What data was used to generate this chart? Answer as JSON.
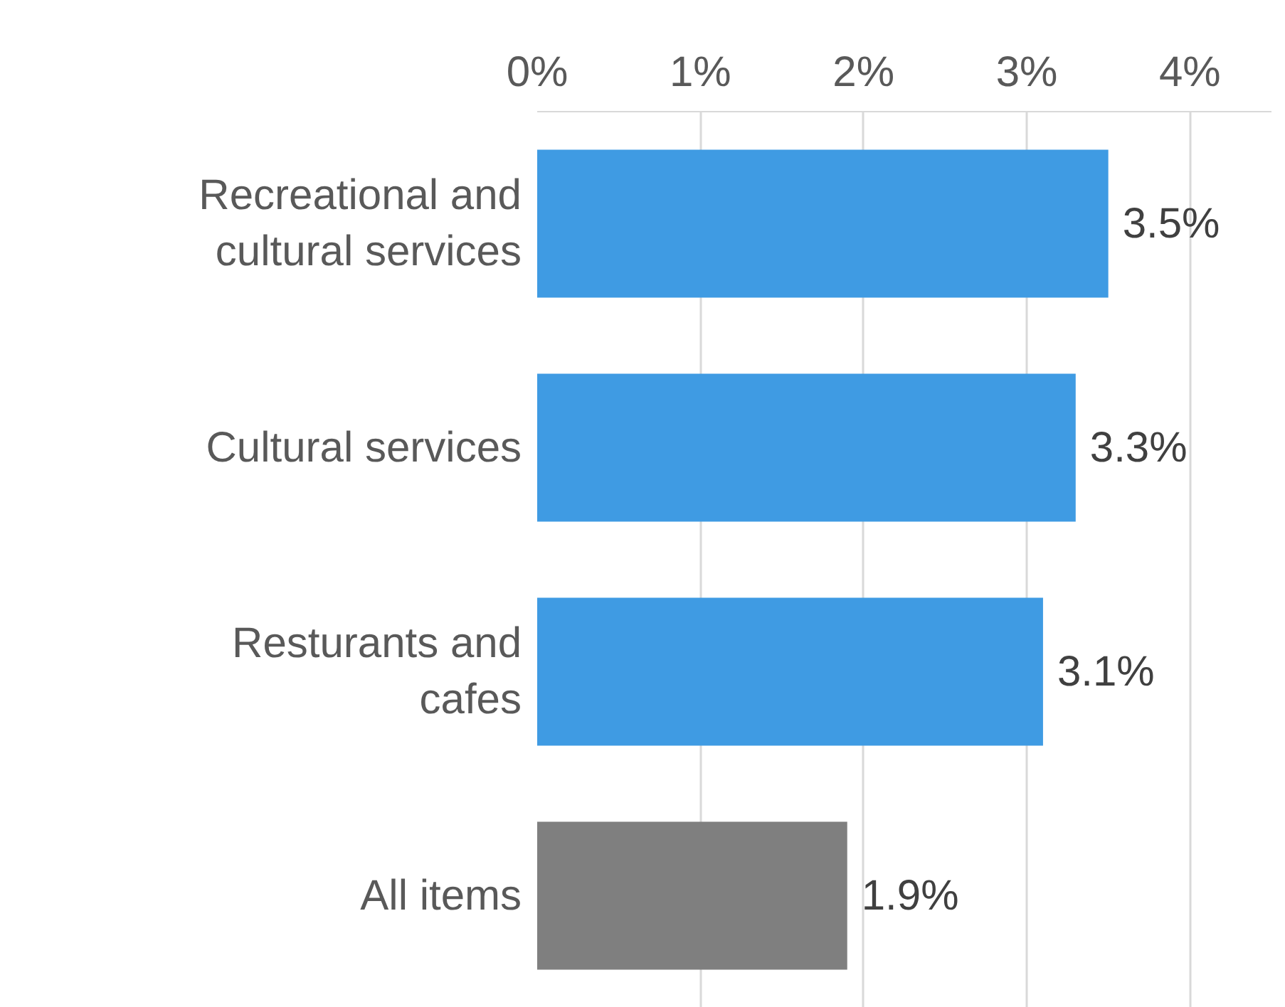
{
  "chart_data": {
    "type": "bar",
    "orientation": "horizontal",
    "categories": [
      "Recreational and cultural services",
      "Cultural services",
      "Resturants and cafes",
      "All items"
    ],
    "values": [
      3.5,
      3.3,
      3.1,
      1.9
    ],
    "colors": [
      "#3f9be3",
      "#3f9be3",
      "#3f9be3",
      "#7f7f7f"
    ],
    "value_labels": [
      "3.5%",
      "3.3%",
      "3.1%",
      "1.9%"
    ],
    "xlim": [
      0,
      4.5
    ],
    "xticks": [
      {
        "value": 0,
        "label": "0%"
      },
      {
        "value": 1,
        "label": "1%"
      },
      {
        "value": 2,
        "label": "2%"
      },
      {
        "value": 3,
        "label": "3%"
      },
      {
        "value": 4,
        "label": "4%"
      }
    ],
    "grid": "x"
  }
}
